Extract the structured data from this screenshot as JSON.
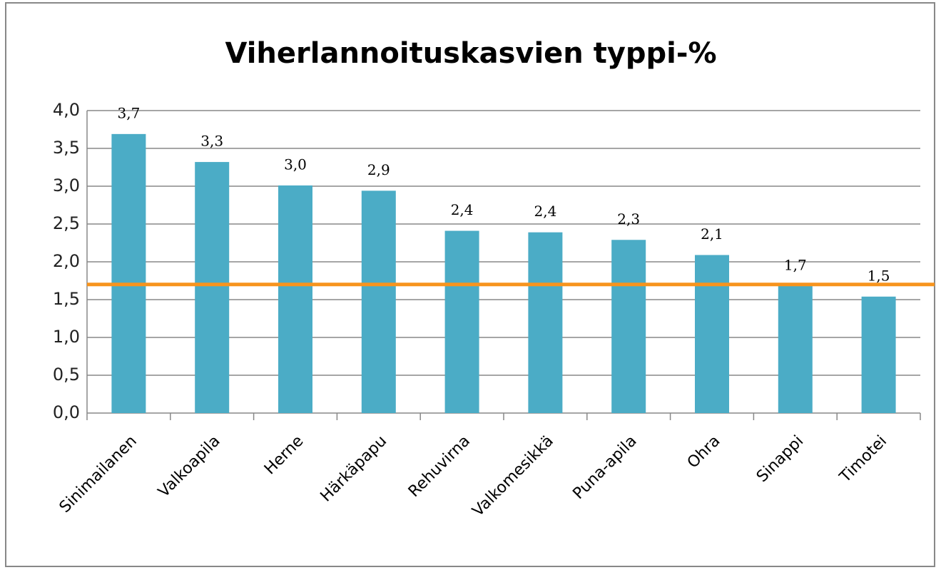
{
  "chart_data": {
    "type": "bar",
    "title": "Viherlannoituskasvien typpi-%",
    "categories": [
      "Sinimailanen",
      "Valkoapila",
      "Herne",
      "Härkäpapu",
      "Rehuvirna",
      "Valkomesikkä",
      "Puna-apila",
      "Ohra",
      "Sinappi",
      "Timotei"
    ],
    "values": [
      3.69,
      3.32,
      3.01,
      2.94,
      2.41,
      2.39,
      2.29,
      2.09,
      1.68,
      1.54
    ],
    "value_labels": [
      "3,7",
      "3,3",
      "3,0",
      "2,9",
      "2,4",
      "2,4",
      "2,3",
      "2,1",
      "1,7",
      "1,5"
    ],
    "color": "#4bacc6",
    "ylim": [
      0,
      4
    ],
    "yticks": [
      {
        "value": 0,
        "label": "0,0"
      },
      {
        "value": 0.5,
        "label": "0,5"
      },
      {
        "value": 1,
        "label": "1,0"
      },
      {
        "value": 1.5,
        "label": "1,5"
      },
      {
        "value": 2,
        "label": "2,0"
      },
      {
        "value": 2.5,
        "label": "2,5"
      },
      {
        "value": 3,
        "label": "3,0"
      },
      {
        "value": 3.5,
        "label": "3,5"
      },
      {
        "value": 4,
        "label": "4,0"
      }
    ],
    "grid": true,
    "reference_line": {
      "value": 1.7,
      "color": "#f7941d"
    }
  }
}
